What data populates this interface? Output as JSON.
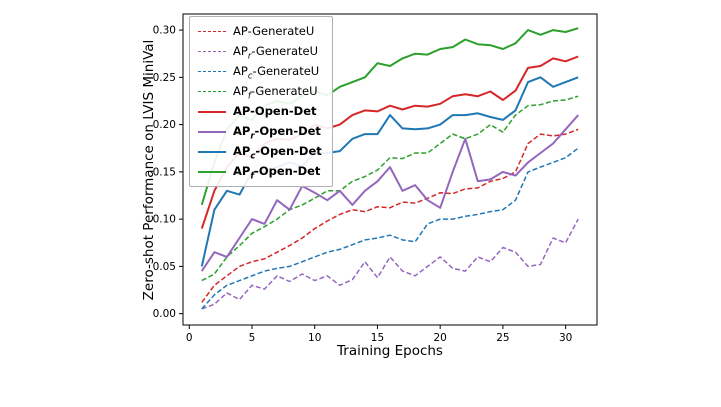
{
  "figure": {
    "background": "#ffffff"
  },
  "chart_data": {
    "type": "line",
    "title": "",
    "xlabel": "Training Epochs",
    "ylabel": "Zero-shot Performance on LVIS MiniVal",
    "xlim": [
      -0.5,
      32.5
    ],
    "ylim": [
      -0.012,
      0.317
    ],
    "xticks": [
      0,
      5,
      10,
      15,
      20,
      25,
      30
    ],
    "yticks": [
      0.0,
      0.05,
      0.1,
      0.15,
      0.2,
      0.25,
      0.3
    ],
    "grid": false,
    "legend_position": "upper-left",
    "x": [
      1,
      2,
      3,
      4,
      5,
      6,
      7,
      8,
      9,
      10,
      11,
      12,
      13,
      14,
      15,
      16,
      17,
      18,
      19,
      20,
      21,
      22,
      23,
      24,
      25,
      26,
      27,
      28,
      29,
      30,
      31
    ],
    "series": [
      {
        "name": "AP-GenerateU",
        "label": {
          "pre": "AP",
          "sub": "",
          "post": "-GenerateU"
        },
        "color": "#d62728",
        "style": "dashed",
        "bold": false,
        "values": [
          0.012,
          0.03,
          0.04,
          0.05,
          0.055,
          0.058,
          0.065,
          0.072,
          0.08,
          0.09,
          0.098,
          0.105,
          0.11,
          0.108,
          0.113,
          0.112,
          0.118,
          0.117,
          0.122,
          0.128,
          0.127,
          0.132,
          0.133,
          0.14,
          0.143,
          0.15,
          0.18,
          0.19,
          0.188,
          0.19,
          0.195
        ]
      },
      {
        "name": "APr-GenerateU",
        "label": {
          "pre": "AP",
          "sub": "r",
          "post": "-GenerateU"
        },
        "color": "#9467bd",
        "style": "dashed",
        "bold": false,
        "values": [
          0.005,
          0.01,
          0.022,
          0.015,
          0.03,
          0.026,
          0.04,
          0.034,
          0.042,
          0.035,
          0.04,
          0.03,
          0.036,
          0.055,
          0.038,
          0.06,
          0.045,
          0.04,
          0.05,
          0.06,
          0.048,
          0.045,
          0.06,
          0.055,
          0.07,
          0.065,
          0.05,
          0.052,
          0.08,
          0.075,
          0.1
        ]
      },
      {
        "name": "APc-GenerateU",
        "label": {
          "pre": "AP",
          "sub": "c",
          "post": "-GenerateU"
        },
        "color": "#1f77b4",
        "style": "dashed",
        "bold": false,
        "values": [
          0.005,
          0.02,
          0.03,
          0.035,
          0.04,
          0.045,
          0.048,
          0.05,
          0.055,
          0.06,
          0.065,
          0.068,
          0.073,
          0.078,
          0.08,
          0.083,
          0.078,
          0.076,
          0.095,
          0.1,
          0.1,
          0.103,
          0.105,
          0.108,
          0.11,
          0.12,
          0.15,
          0.155,
          0.16,
          0.165,
          0.175
        ]
      },
      {
        "name": "APf-GenerateU",
        "label": {
          "pre": "AP",
          "sub": "f",
          "post": "-GenerateU"
        },
        "color": "#2ca02c",
        "style": "dashed",
        "bold": false,
        "values": [
          0.035,
          0.042,
          0.06,
          0.072,
          0.085,
          0.092,
          0.1,
          0.11,
          0.115,
          0.122,
          0.13,
          0.13,
          0.14,
          0.145,
          0.152,
          0.165,
          0.164,
          0.17,
          0.17,
          0.18,
          0.19,
          0.185,
          0.19,
          0.2,
          0.192,
          0.21,
          0.22,
          0.221,
          0.225,
          0.226,
          0.23
        ]
      },
      {
        "name": "AP-Open-Det",
        "label": {
          "pre": "AP",
          "sub": "",
          "post": "-Open-Det"
        },
        "color": "#d62728",
        "style": "solid",
        "bold": true,
        "values": [
          0.09,
          0.13,
          0.155,
          0.17,
          0.165,
          0.18,
          0.185,
          0.184,
          0.19,
          0.2,
          0.196,
          0.2,
          0.21,
          0.215,
          0.214,
          0.22,
          0.216,
          0.22,
          0.219,
          0.222,
          0.23,
          0.232,
          0.23,
          0.235,
          0.226,
          0.236,
          0.26,
          0.262,
          0.27,
          0.267,
          0.272
        ]
      },
      {
        "name": "APr-Open-Det",
        "label": {
          "pre": "AP",
          "sub": "r",
          "post": "-Open-Det"
        },
        "color": "#9467bd",
        "style": "solid",
        "bold": true,
        "values": [
          0.045,
          0.065,
          0.06,
          0.08,
          0.1,
          0.095,
          0.12,
          0.11,
          0.135,
          0.128,
          0.12,
          0.13,
          0.115,
          0.13,
          0.14,
          0.155,
          0.13,
          0.136,
          0.12,
          0.112,
          0.15,
          0.185,
          0.14,
          0.142,
          0.15,
          0.146,
          0.16,
          0.17,
          0.18,
          0.195,
          0.21
        ]
      },
      {
        "name": "APc-Open-Det",
        "label": {
          "pre": "AP",
          "sub": "c",
          "post": "-Open-Det"
        },
        "color": "#1f77b4",
        "style": "solid",
        "bold": true,
        "values": [
          0.05,
          0.11,
          0.13,
          0.126,
          0.15,
          0.15,
          0.155,
          0.16,
          0.156,
          0.17,
          0.17,
          0.172,
          0.185,
          0.19,
          0.19,
          0.21,
          0.196,
          0.195,
          0.196,
          0.2,
          0.21,
          0.21,
          0.212,
          0.208,
          0.205,
          0.215,
          0.245,
          0.25,
          0.24,
          0.245,
          0.25
        ]
      },
      {
        "name": "APf-Open-Det",
        "label": {
          "pre": "AP",
          "sub": "f",
          "post": "-Open-Det"
        },
        "color": "#2ca02c",
        "style": "solid",
        "bold": true,
        "values": [
          0.115,
          0.16,
          0.195,
          0.21,
          0.205,
          0.22,
          0.225,
          0.222,
          0.23,
          0.235,
          0.231,
          0.24,
          0.245,
          0.25,
          0.265,
          0.262,
          0.27,
          0.275,
          0.274,
          0.28,
          0.282,
          0.29,
          0.285,
          0.284,
          0.28,
          0.286,
          0.3,
          0.295,
          0.3,
          0.298,
          0.302
        ]
      }
    ]
  }
}
